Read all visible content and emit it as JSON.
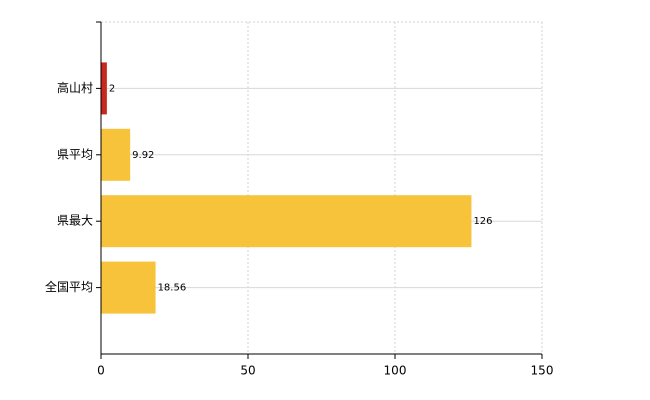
{
  "chart_data": {
    "type": "bar",
    "orientation": "horizontal",
    "categories": [
      "高山村",
      "県平均",
      "県最大",
      "全国平均"
    ],
    "values": [
      2,
      9.92,
      126,
      18.56
    ],
    "colors": [
      "#c8281e",
      "#f7c33a",
      "#f7c33a",
      "#f7c33a"
    ],
    "xlim": [
      0,
      150
    ],
    "xticks": [
      0,
      50,
      100,
      150
    ],
    "grid": true,
    "data_labels": true
  }
}
